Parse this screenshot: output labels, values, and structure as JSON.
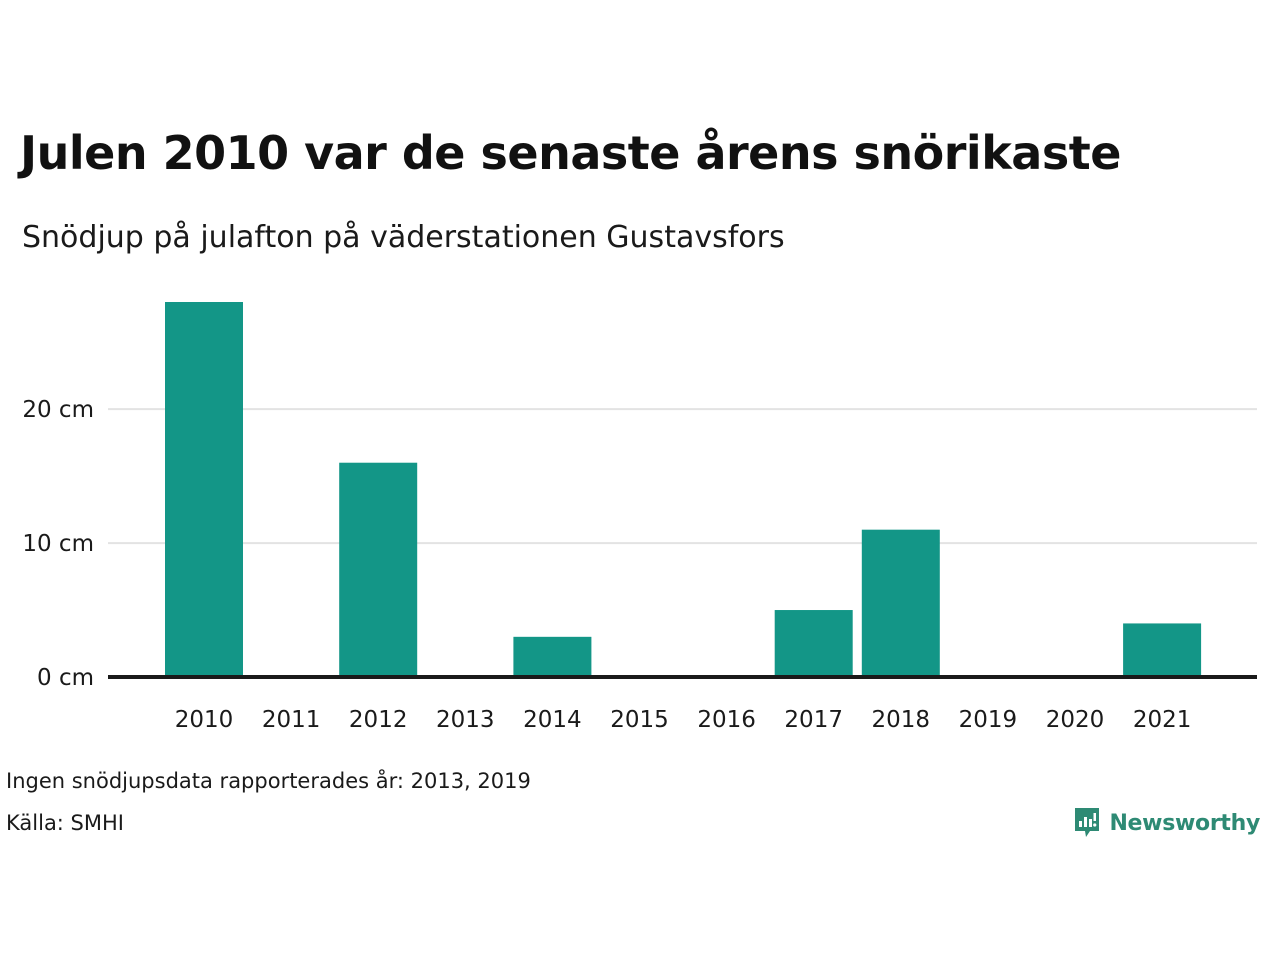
{
  "header": {
    "title": "Julen 2010 var de senaste årens snörikaste",
    "subtitle": "Snödjup på julafton på väderstationen Gustavsfors"
  },
  "notes": {
    "missing_data": "Ingen snödjupsdata rapporterades år: 2013, 2019",
    "source": "Källa: SMHI"
  },
  "brand": {
    "name": "Newsworthy",
    "icon": "newsworthy-logo-icon",
    "color": "#2e8a74"
  },
  "chart_data": {
    "type": "bar",
    "title": "Julen 2010 var de senaste årens snörikaste",
    "subtitle": "Snödjup på julafton på väderstationen Gustavsfors",
    "xlabel": "",
    "ylabel": "",
    "categories": [
      "2010",
      "2011",
      "2012",
      "2013",
      "2014",
      "2015",
      "2016",
      "2017",
      "2018",
      "2019",
      "2020",
      "2021"
    ],
    "values": [
      28,
      0,
      16,
      null,
      3,
      0,
      0,
      5,
      11,
      null,
      0,
      4
    ],
    "ylim": [
      0,
      28
    ],
    "yticks": [
      0,
      10,
      20
    ],
    "ytick_labels": [
      "0 cm",
      "10 cm",
      "20 cm"
    ],
    "bar_color": "#139687",
    "grid": true,
    "legend": "none"
  }
}
